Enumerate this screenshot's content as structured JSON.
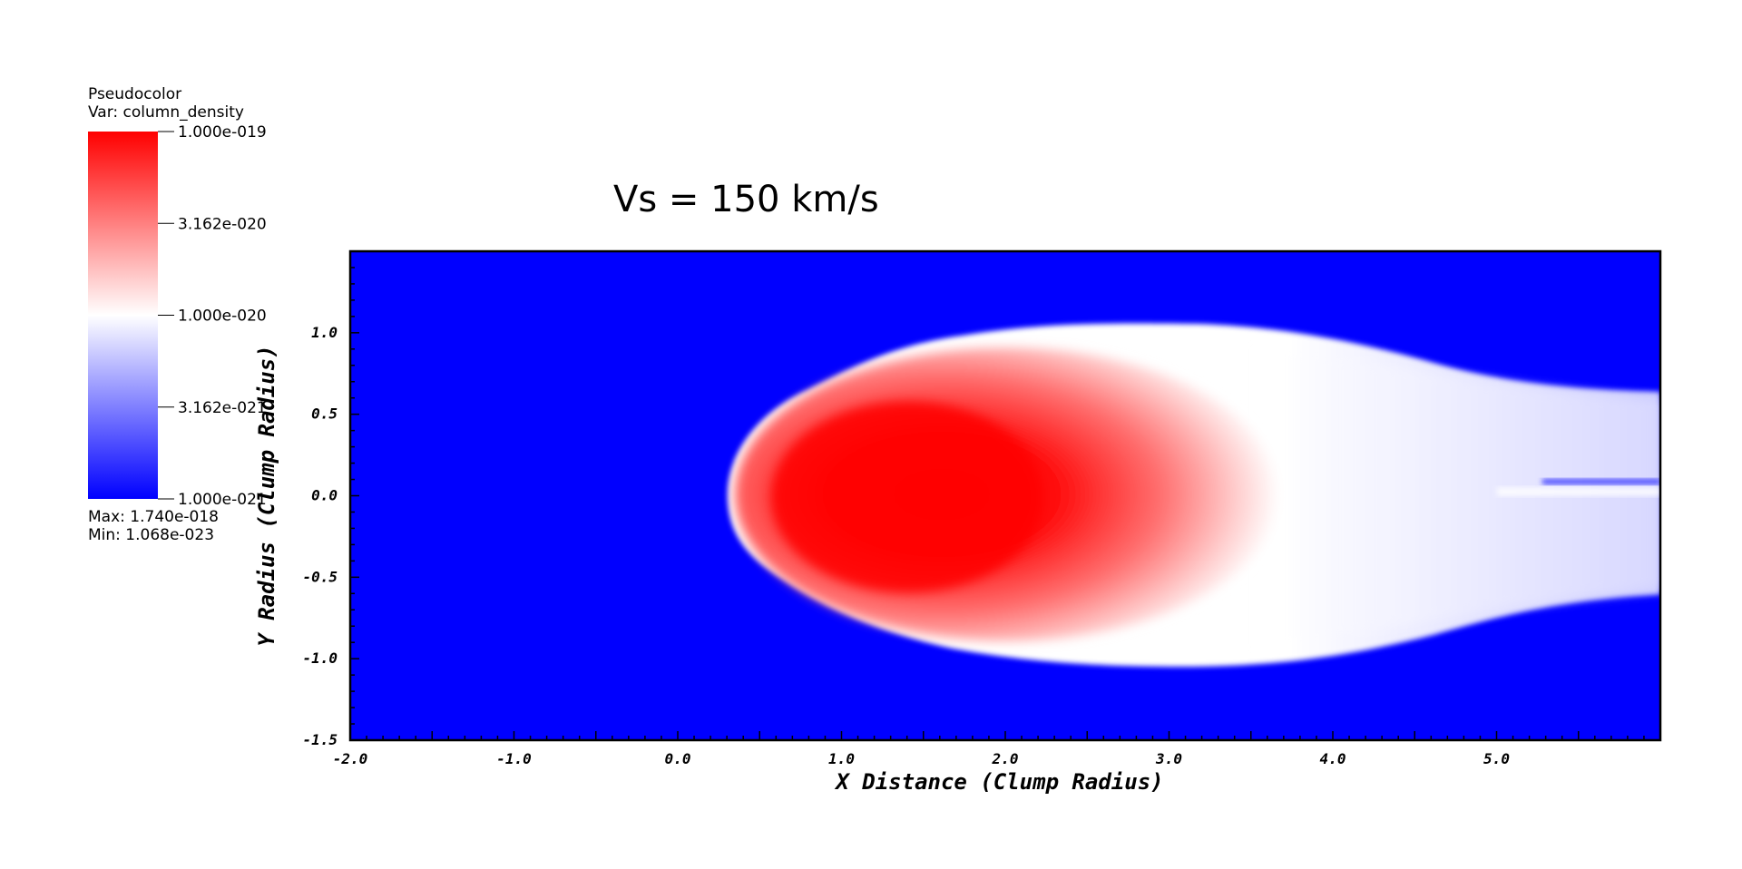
{
  "legend": {
    "title": "Pseudocolor",
    "var_label": "Var: column_density",
    "max_label": "Max:  1.740e-018",
    "min_label": "Min:  1.068e-023",
    "tick_labels": [
      "1.000e-019",
      "3.162e-020",
      "1.000e-020",
      "3.162e-021",
      "1.000e-021"
    ],
    "colors": {
      "high": "#ff0000",
      "mid": "#ffffff",
      "low": "#0000ff"
    }
  },
  "plot_title": "Vs = 150 km/s",
  "chart_data": {
    "type": "heatmap",
    "title": "Vs = 150 km/s",
    "xlabel": "X Distance (Clump Radius)",
    "ylabel": "Y Radius (Clump Radius)",
    "xlim": [
      -2.0,
      6.0
    ],
    "ylim": [
      -1.5,
      1.5
    ],
    "x_ticks": [
      -2.0,
      -1.0,
      0.0,
      1.0,
      2.0,
      3.0,
      4.0,
      5.0
    ],
    "x_tick_labels": [
      "-2.0",
      "-1.0",
      "0.0",
      "1.0",
      "2.0",
      "3.0",
      "4.0",
      "5.0"
    ],
    "y_ticks": [
      -1.5,
      -1.0,
      -0.5,
      0.0,
      0.5,
      1.0
    ],
    "y_tick_labels": [
      "-1.5",
      "-1.0",
      "-0.5",
      "0.0",
      "0.5",
      "1.0"
    ],
    "variable": "column_density",
    "colorscale": {
      "type": "log",
      "min": 1e-21,
      "max": 1e-19,
      "ticks": [
        1e-19,
        3.162e-20,
        1e-20,
        3.162e-21,
        1e-21
      ]
    },
    "data_max": 1.74e-18,
    "data_min": 1.068e-23,
    "grid": false
  }
}
